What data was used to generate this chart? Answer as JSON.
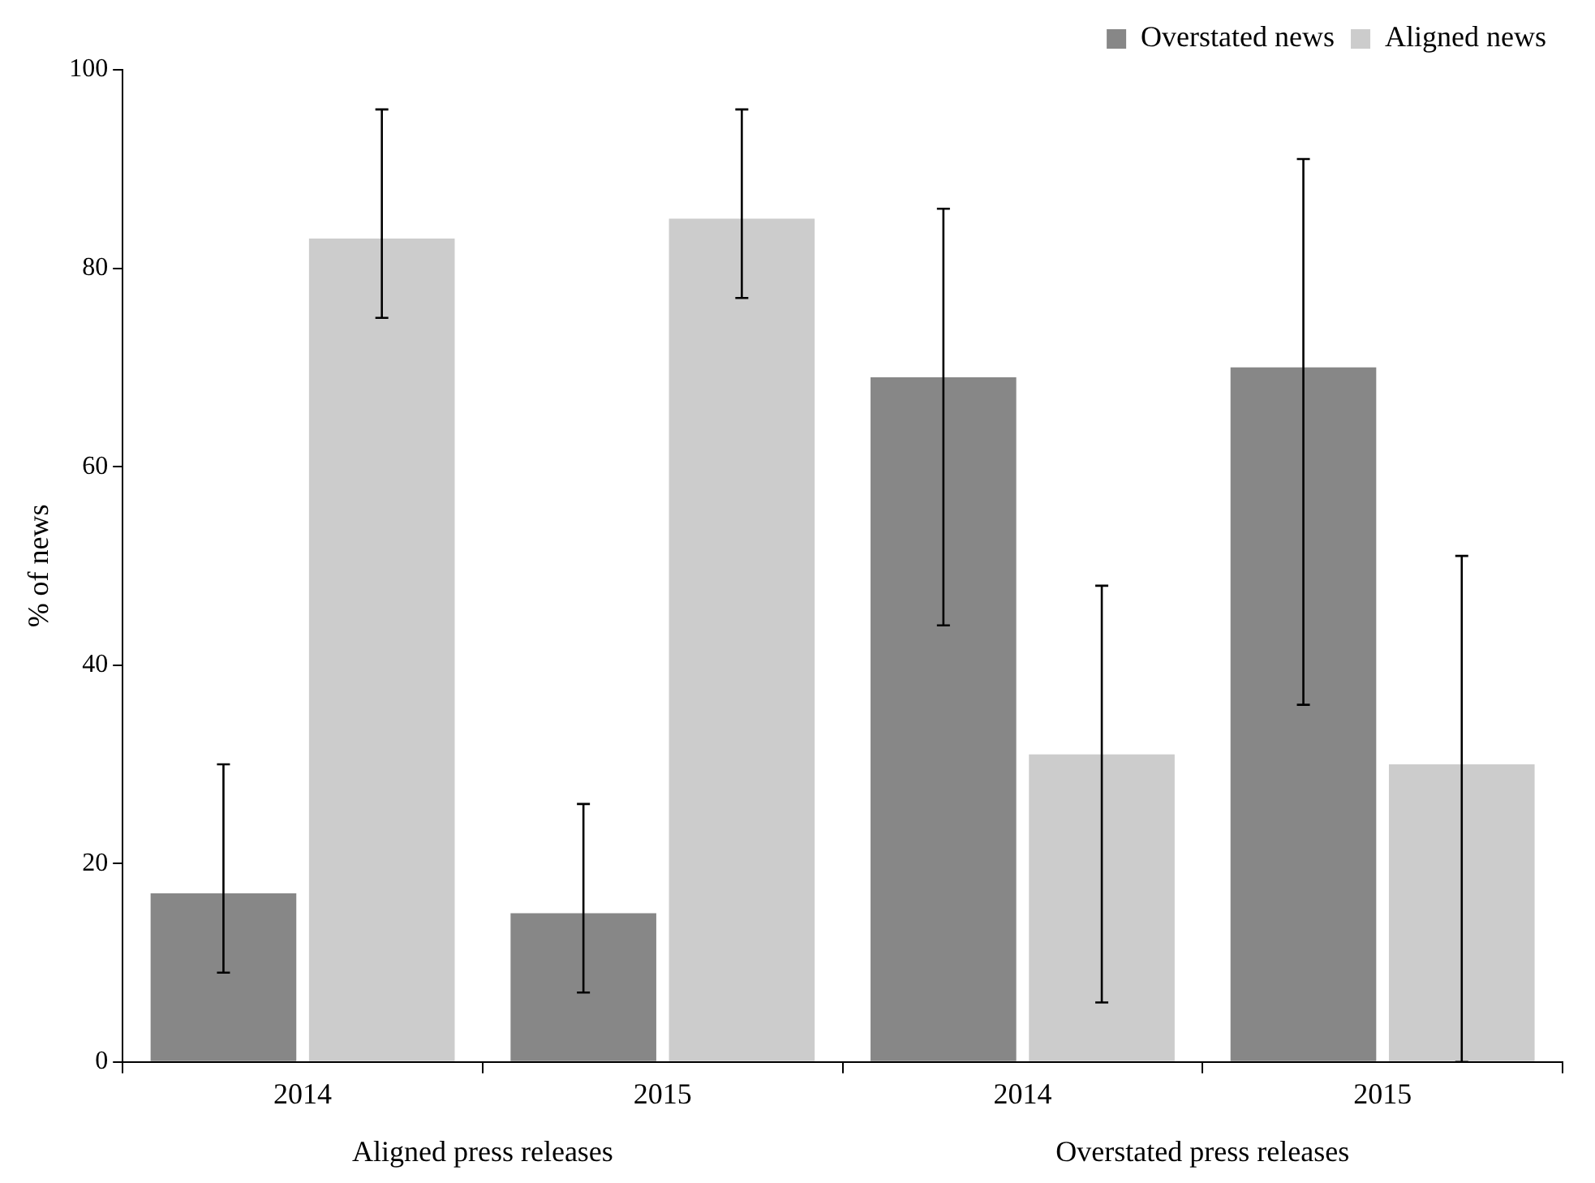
{
  "chart_data": {
    "type": "bar",
    "ylabel": "% of news",
    "categories": [
      "2014",
      "2015",
      "2014",
      "2015"
    ],
    "series": [
      {
        "name": "Overstated news",
        "color": "#878787",
        "values": [
          17,
          15,
          69,
          70
        ],
        "errors": [
          [
            9,
            30
          ],
          [
            7,
            26
          ],
          [
            44,
            86
          ],
          [
            36,
            91
          ]
        ]
      },
      {
        "name": "Aligned news",
        "color": "#cccccc",
        "values": [
          83,
          85,
          31,
          30
        ],
        "errors": [
          [
            75,
            96
          ],
          [
            77,
            96
          ],
          [
            6,
            48
          ],
          [
            0,
            51
          ]
        ]
      }
    ],
    "annotations": [
      "Aligned press releases",
      "Overstated press releases"
    ],
    "ylim": [
      0,
      100
    ],
    "yticks": [
      0,
      20,
      40,
      60,
      80,
      100
    ],
    "grid": false,
    "legend": "top right"
  }
}
